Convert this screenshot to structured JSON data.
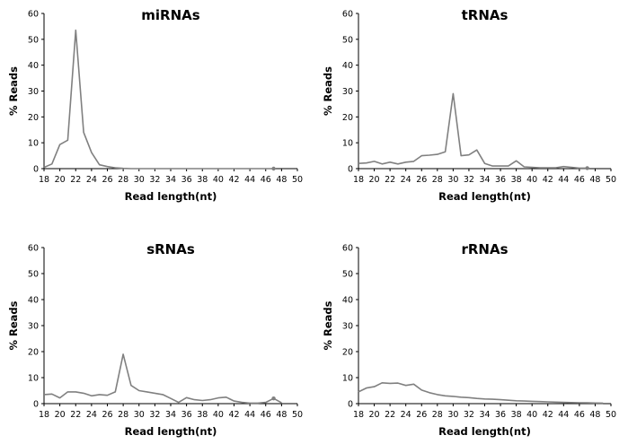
{
  "chart_data": [
    {
      "type": "line",
      "title": "miRNAs",
      "xlabel": "Read length(nt)",
      "ylabel": "% Reads",
      "xlim": [
        18,
        50
      ],
      "ylim": [
        0,
        60
      ],
      "xticks": [
        "18",
        "20",
        "22",
        "24",
        "26",
        "28",
        "30",
        "32",
        "34",
        "36",
        "38",
        "40",
        "42",
        "44",
        "46",
        "48",
        "50"
      ],
      "yticks": [
        "0",
        "10",
        "20",
        "30",
        "40",
        "50",
        "60"
      ],
      "x": [
        18,
        19,
        20,
        21,
        22,
        23,
        24,
        25,
        26,
        27,
        28,
        29,
        30,
        31,
        32,
        33,
        34,
        35,
        36,
        37,
        38,
        39,
        40,
        41,
        42,
        43,
        44,
        45,
        46,
        47
      ],
      "values": [
        0.5,
        1.8,
        9.3,
        11,
        53.5,
        14,
        6.2,
        1.5,
        0.8,
        0.3,
        0.1,
        0,
        0,
        0,
        0,
        0,
        0,
        0,
        0,
        0,
        0,
        0,
        0,
        0,
        0,
        0,
        0,
        0,
        0,
        0
      ],
      "markers": [
        [
          47,
          0
        ]
      ]
    },
    {
      "type": "line",
      "title": "tRNAs",
      "xlabel": "Read length(nt)",
      "ylabel": "% Reads",
      "xlim": [
        18,
        50
      ],
      "ylim": [
        0,
        60
      ],
      "xticks": [
        "18",
        "20",
        "22",
        "24",
        "26",
        "28",
        "30",
        "32",
        "34",
        "36",
        "38",
        "40",
        "42",
        "44",
        "46",
        "48",
        "50"
      ],
      "yticks": [
        "0",
        "10",
        "20",
        "30",
        "40",
        "50",
        "60"
      ],
      "x": [
        18,
        19,
        20,
        21,
        22,
        23,
        24,
        25,
        26,
        27,
        28,
        29,
        30,
        31,
        32,
        33,
        34,
        35,
        36,
        37,
        38,
        39,
        40,
        41,
        42,
        43,
        44,
        45,
        46,
        47
      ],
      "values": [
        2,
        2.2,
        2.8,
        1.8,
        2.5,
        1.8,
        2.5,
        2.8,
        5,
        5.2,
        5.5,
        6.5,
        29,
        5,
        5.3,
        7.2,
        2,
        1,
        1,
        1,
        3,
        0.7,
        0.5,
        0.3,
        0.3,
        0.3,
        0.8,
        0.5,
        0.2,
        0.2
      ],
      "markers": [
        [
          47,
          0.2
        ]
      ]
    },
    {
      "type": "line",
      "title": "sRNAs",
      "xlabel": "Read length(nt)",
      "ylabel": "% Reads",
      "xlim": [
        18,
        50
      ],
      "ylim": [
        0,
        60
      ],
      "xticks": [
        "18",
        "20",
        "22",
        "24",
        "26",
        "28",
        "30",
        "32",
        "34",
        "36",
        "38",
        "40",
        "42",
        "44",
        "46",
        "48",
        "50"
      ],
      "yticks": [
        "0",
        "10",
        "20",
        "30",
        "40",
        "50",
        "60"
      ],
      "x": [
        18,
        19,
        20,
        21,
        22,
        23,
        24,
        25,
        26,
        27,
        28,
        29,
        30,
        31,
        32,
        33,
        34,
        35,
        36,
        37,
        38,
        39,
        40,
        41,
        42,
        43,
        44,
        45,
        46,
        47,
        48
      ],
      "values": [
        3.5,
        3.7,
        2.2,
        4.5,
        4.5,
        4,
        3,
        3.5,
        3.2,
        4.5,
        19,
        7,
        5,
        4.5,
        4,
        3.5,
        2,
        0.5,
        2.3,
        1.5,
        1.2,
        1.5,
        2.2,
        2.5,
        1,
        0.5,
        0.2,
        0.2,
        0.5,
        2,
        0.3
      ],
      "markers": [
        [
          47,
          2
        ]
      ]
    },
    {
      "type": "line",
      "title": "rRNAs",
      "xlabel": "Read length(nt)",
      "ylabel": "% Reads",
      "xlim": [
        18,
        50
      ],
      "ylim": [
        0,
        60
      ],
      "xticks": [
        "18",
        "20",
        "22",
        "24",
        "26",
        "28",
        "30",
        "32",
        "34",
        "36",
        "38",
        "40",
        "42",
        "44",
        "46",
        "48",
        "50"
      ],
      "yticks": [
        "0",
        "10",
        "20",
        "30",
        "40",
        "50",
        "60"
      ],
      "x": [
        18,
        19,
        20,
        21,
        22,
        23,
        24,
        25,
        26,
        27,
        28,
        29,
        30,
        31,
        32,
        33,
        34,
        35,
        36,
        37,
        38,
        39,
        40,
        41,
        42,
        43,
        44,
        45,
        46,
        47,
        48,
        49
      ],
      "values": [
        4.5,
        6,
        6.5,
        8,
        7.8,
        7.9,
        7,
        7.5,
        5.2,
        4.2,
        3.5,
        3,
        2.8,
        2.5,
        2.3,
        2,
        1.8,
        1.7,
        1.5,
        1.3,
        1.1,
        1,
        0.9,
        0.8,
        0.7,
        0.6,
        0.5,
        0.4,
        0.35,
        0.3,
        0.25,
        0.2
      ],
      "markers": []
    }
  ]
}
